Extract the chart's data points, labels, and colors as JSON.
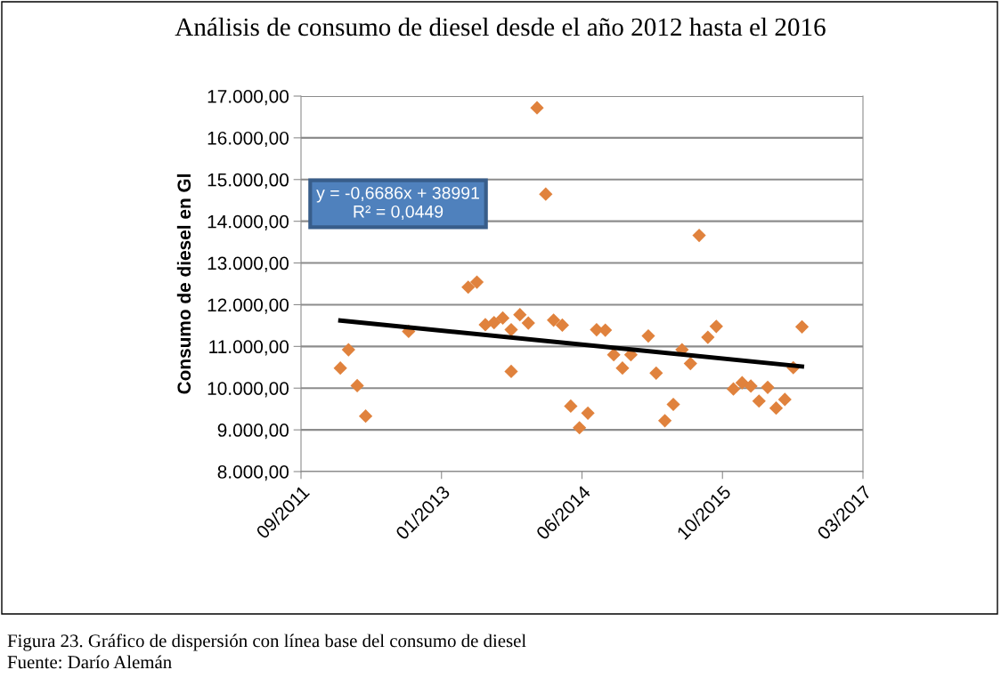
{
  "chart_data": {
    "type": "scatter",
    "title": "Análisis de consumo de diesel desde el año 2012 hasta el 2016",
    "ylabel": "Consumo de diesel en Gl",
    "xlim": [
      "2011-09-14",
      "2017-03-06"
    ],
    "xticks": [
      {
        "value": "2011-09-14",
        "label": "09/2011"
      },
      {
        "value": "2013-01-26",
        "label": "01/2013"
      },
      {
        "value": "2014-06-10",
        "label": "06/2014"
      },
      {
        "value": "2015-10-23",
        "label": "10/2015"
      },
      {
        "value": "2017-03-06",
        "label": "03/2017"
      }
    ],
    "ylim": [
      8000,
      17000
    ],
    "yticks": [
      {
        "value": 8000,
        "label": "8.000,00"
      },
      {
        "value": 9000,
        "label": "9.000,00"
      },
      {
        "value": 10000,
        "label": "10.000,00"
      },
      {
        "value": 11000,
        "label": "11.000,00"
      },
      {
        "value": 12000,
        "label": "12.000,00"
      },
      {
        "value": 13000,
        "label": "13.000,00"
      },
      {
        "value": 14000,
        "label": "14.000,00"
      },
      {
        "value": 15000,
        "label": "15.000,00"
      },
      {
        "value": 16000,
        "label": "16.000,00"
      },
      {
        "value": 17000,
        "label": "17.000,00"
      }
    ],
    "grid": "y",
    "marker": "diamond",
    "legend": false,
    "series": [
      {
        "color": "#e0823d",
        "x": [
          "2012-02-01",
          "2012-03-01",
          "2012-04-01",
          "2012-05-01",
          "2012-10-01",
          "2013-05-01",
          "2013-06-01",
          "2013-07-01",
          "2013-08-01",
          "2013-09-01",
          "2013-10-01",
          "2013-10-01",
          "2013-11-01",
          "2013-12-01",
          "2014-01-01",
          "2014-02-01",
          "2014-03-01",
          "2014-04-01",
          "2014-05-01",
          "2014-06-01",
          "2014-07-01",
          "2014-08-01",
          "2014-09-01",
          "2014-10-01",
          "2014-11-01",
          "2014-12-01",
          "2015-02-01",
          "2015-03-01",
          "2015-04-01",
          "2015-05-01",
          "2015-06-01",
          "2015-07-01",
          "2015-08-01",
          "2015-09-01",
          "2015-10-01",
          "2015-12-01",
          "2016-01-01",
          "2016-02-01",
          "2016-03-01",
          "2016-04-01",
          "2016-05-01",
          "2016-06-01",
          "2016-07-01",
          "2016-08-01"
        ],
        "values": [
          10480,
          10920,
          10060,
          9330,
          11360,
          12420,
          12540,
          11520,
          11570,
          11680,
          11400,
          10400,
          11760,
          11560,
          16720,
          14650,
          11630,
          11510,
          9570,
          9050,
          9400,
          11400,
          11390,
          10800,
          10480,
          10800,
          11250,
          10360,
          9220,
          9610,
          10920,
          10590,
          13660,
          11220,
          11480,
          9980,
          10130,
          10050,
          9690,
          10020,
          9520,
          9730,
          10490,
          11470
        ]
      },
      {
        "type": "line",
        "color": "#000000",
        "marker": "none",
        "x": [
          "2012-02-01",
          "2016-08-01"
        ],
        "values": [
          11620,
          10520
        ]
      }
    ],
    "annotations": [
      "y = -0,6686x + 38991\nR² = 0,0449",
      "Figura 23. Gráfico de dispersión con línea base del consumo de diesel",
      "Fuente: Darío Alemán"
    ]
  }
}
